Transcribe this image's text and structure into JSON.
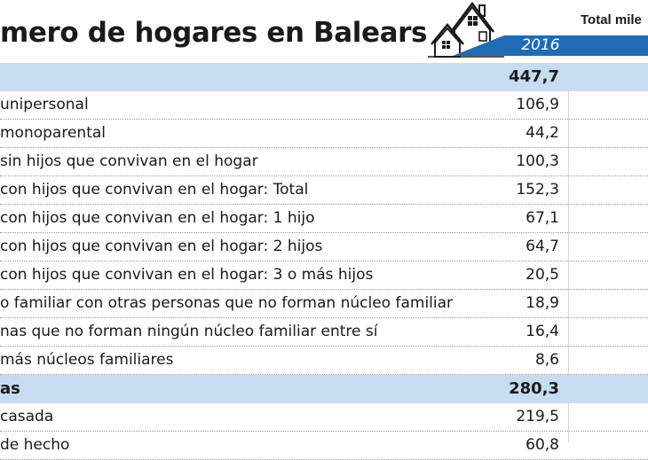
{
  "header": {
    "title": "mero de hogares en Balears",
    "unit_label": "Total mile",
    "year": "2016",
    "icon": "house-icon",
    "band_color": "#1f6cb5",
    "highlight_color": "#c6dcf1"
  },
  "rows": [
    {
      "label": "",
      "value": "447,7",
      "highlight": true
    },
    {
      "label": "unipersonal",
      "value": "106,9"
    },
    {
      "label": "monoparental",
      "value": "44,2"
    },
    {
      "label": "sin hijos que convivan en el hogar",
      "value": "100,3"
    },
    {
      "label": "con hijos que convivan en el hogar: Total",
      "value": "152,3"
    },
    {
      "label": "con hijos que convivan en el hogar: 1 hijo",
      "value": "67,1"
    },
    {
      "label": "con hijos que convivan en el hogar: 2 hijos",
      "value": "64,7"
    },
    {
      "label": "con hijos que convivan en el hogar: 3 o más hijos",
      "value": "20,5"
    },
    {
      "label": "o familiar con otras personas que no forman núcleo familiar",
      "value": "18,9"
    },
    {
      "label": "nas que no forman ningún núcleo familiar entre sí",
      "value": "16,4"
    },
    {
      "label": "más núcleos familiares",
      "value": "8,6"
    },
    {
      "label": "as",
      "value": "280,3",
      "highlight": true
    },
    {
      "label": "casada",
      "value": "219,5"
    },
    {
      "label": "de hecho",
      "value": "60,8"
    }
  ]
}
